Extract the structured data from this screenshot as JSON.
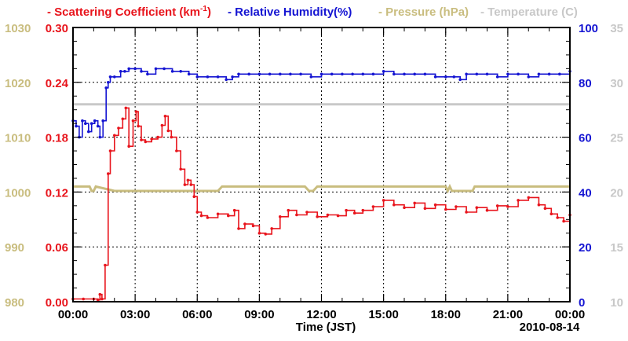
{
  "chart_data": {
    "type": "line",
    "title": "",
    "legend": [
      {
        "name": "Scattering Coefficient (km⁻¹)",
        "label": "Scattering Coefficient (km",
        "sup": "-1",
        "close": ")",
        "color": "#e8141c"
      },
      {
        "name": "Relative Humidity(%)",
        "label": "Relative Humidity(%)",
        "color": "#1414d2"
      },
      {
        "name": "Pressure (hPa)",
        "label": "Pressure (hPa)",
        "color": "#c9bd7f"
      },
      {
        "name": "Temperature (C)",
        "label": "Temperature (C)",
        "color": "#c8c8c8"
      }
    ],
    "xlabel": "Time (JST)",
    "date_label": "2010-08-14",
    "x_range_hours": [
      0,
      24
    ],
    "x_ticks": [
      "00:00",
      "03:00",
      "06:00",
      "09:00",
      "12:00",
      "15:00",
      "18:00",
      "21:00",
      "00:00"
    ],
    "grid": true,
    "axes": {
      "scattering": {
        "label_ticks": [
          "0.00",
          "0.06",
          "0.12",
          "0.18",
          "0.24",
          "0.30"
        ],
        "range": [
          0,
          0.3
        ],
        "color": "#e8141c"
      },
      "pressure": {
        "label_ticks": [
          "980",
          "990",
          "1000",
          "1010",
          "1020",
          "1030"
        ],
        "range": [
          980,
          1030
        ],
        "color": "#c9bd7f"
      },
      "humidity": {
        "label_ticks": [
          "0",
          "20",
          "40",
          "60",
          "80",
          "100"
        ],
        "range": [
          0,
          100
        ],
        "color": "#1414d2"
      },
      "temperature": {
        "label_ticks": [
          "10",
          "15",
          "20",
          "25",
          "30",
          "35"
        ],
        "range": [
          10,
          35
        ],
        "color": "#c8c8c8"
      }
    },
    "series": [
      {
        "name": "Scattering Coefficient (km-1)",
        "axis": "scattering",
        "color": "#e8141c",
        "marker": true,
        "x": [
          0,
          0.5,
          1.0,
          1.2,
          1.3,
          1.4,
          1.55,
          1.7,
          1.8,
          2.0,
          2.2,
          2.4,
          2.55,
          2.7,
          2.9,
          3.05,
          3.15,
          3.3,
          3.5,
          3.8,
          4.1,
          4.3,
          4.45,
          4.6,
          4.75,
          5.0,
          5.2,
          5.4,
          5.55,
          5.7,
          5.85,
          6.0,
          6.2,
          6.5,
          7.0,
          7.5,
          7.8,
          8.0,
          8.3,
          8.7,
          9.0,
          9.3,
          9.6,
          10.0,
          10.4,
          10.8,
          11.3,
          11.8,
          12.3,
          12.8,
          13.2,
          13.6,
          14.0,
          14.5,
          15.0,
          15.5,
          16.0,
          16.5,
          17.0,
          17.5,
          18.0,
          18.5,
          19.0,
          19.5,
          20.0,
          20.5,
          21.0,
          21.5,
          22.0,
          22.5,
          22.8,
          23.1,
          23.4,
          23.7,
          24.0
        ],
        "y": [
          0.003,
          0.003,
          0.003,
          0.002,
          0.008,
          0.003,
          0.04,
          0.14,
          0.165,
          0.182,
          0.19,
          0.2,
          0.212,
          0.17,
          0.198,
          0.208,
          0.192,
          0.177,
          0.175,
          0.178,
          0.18,
          0.193,
          0.203,
          0.187,
          0.18,
          0.165,
          0.145,
          0.128,
          0.133,
          0.128,
          0.115,
          0.098,
          0.094,
          0.092,
          0.096,
          0.094,
          0.1,
          0.08,
          0.085,
          0.083,
          0.075,
          0.074,
          0.08,
          0.093,
          0.1,
          0.095,
          0.098,
          0.093,
          0.095,
          0.094,
          0.1,
          0.097,
          0.1,
          0.104,
          0.111,
          0.106,
          0.103,
          0.108,
          0.102,
          0.106,
          0.101,
          0.104,
          0.098,
          0.103,
          0.1,
          0.105,
          0.104,
          0.111,
          0.114,
          0.106,
          0.102,
          0.096,
          0.092,
          0.088,
          0.095
        ]
      },
      {
        "name": "Relative Humidity(%)",
        "axis": "humidity",
        "color": "#1414d2",
        "marker": true,
        "x": [
          0,
          0.15,
          0.3,
          0.45,
          0.6,
          0.75,
          0.9,
          1.05,
          1.2,
          1.3,
          1.45,
          1.6,
          1.7,
          1.8,
          2.0,
          2.3,
          2.5,
          2.7,
          3.0,
          3.3,
          3.6,
          4.0,
          4.4,
          4.8,
          5.2,
          5.6,
          6.0,
          6.5,
          7.0,
          7.4,
          7.7,
          8.0,
          8.5,
          9.0,
          9.5,
          10.0,
          10.5,
          11.0,
          11.5,
          12.0,
          12.5,
          13.0,
          13.5,
          14.0,
          14.5,
          15.0,
          15.5,
          16.0,
          16.5,
          17.0,
          17.5,
          18.0,
          18.4,
          18.7,
          19.0,
          19.5,
          20.0,
          20.5,
          21.0,
          21.5,
          22.0,
          22.5,
          23.0,
          23.5,
          24.0
        ],
        "y": [
          66,
          64,
          60,
          66,
          65,
          62,
          65,
          66,
          64,
          60,
          66,
          78,
          80,
          82,
          82,
          84,
          84,
          85,
          85,
          84,
          83,
          85,
          85,
          84,
          84,
          83,
          82,
          82,
          82,
          81,
          82,
          83,
          83,
          83,
          83,
          83,
          83,
          83,
          82,
          83,
          83,
          83,
          83,
          83,
          83,
          84,
          83,
          83,
          83,
          83,
          82,
          82,
          82,
          81,
          83,
          83,
          83,
          82,
          83,
          83,
          82,
          83,
          83,
          83,
          84
        ]
      },
      {
        "name": "Pressure (hPa)",
        "axis": "pressure",
        "color": "#c9bd7f",
        "marker": false,
        "x": [
          0,
          0.8,
          0.9,
          1.0,
          1.1,
          2.0,
          7.0,
          7.2,
          11.2,
          11.4,
          11.6,
          11.8,
          12.0,
          18.0,
          18.1,
          18.2,
          18.3,
          18.4,
          19.3,
          19.4,
          24.0
        ],
        "y": [
          1001.0,
          1001.0,
          1000.2,
          1000.2,
          1001.0,
          1000.2,
          1000.2,
          1001.0,
          1001.0,
          1000.2,
          1000.2,
          1001.0,
          1001.0,
          1001.0,
          1000.2,
          1001.0,
          1000.2,
          1000.2,
          1000.2,
          1001.0,
          1001.0
        ]
      },
      {
        "name": "Temperature (C)",
        "axis": "temperature",
        "color": "#c8c8c8",
        "marker": false,
        "x": [
          0,
          24
        ],
        "y": [
          28.0,
          28.0
        ]
      }
    ]
  }
}
